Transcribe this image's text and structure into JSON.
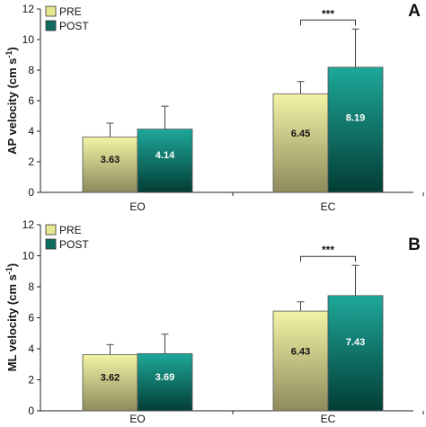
{
  "chart_data": [
    {
      "type": "bar",
      "panel_label": "A",
      "ylabel": "AP velocity (cm s",
      "ylabel_sup": "-1",
      "ylabel_close": ")",
      "yticks": [
        "0",
        "2",
        "4",
        "6",
        "8",
        "10",
        "12"
      ],
      "ylim": [
        0,
        12
      ],
      "categories": [
        "EO",
        "EC"
      ],
      "series": [
        {
          "name": "PRE",
          "values": [
            3.63,
            6.45
          ],
          "errors": [
            0.9,
            0.8
          ],
          "value_labels": [
            "3.63",
            "6.45"
          ]
        },
        {
          "name": "POST",
          "values": [
            4.14,
            8.19
          ],
          "errors": [
            1.5,
            2.5
          ],
          "value_labels": [
            "4.14",
            "8.19"
          ]
        }
      ],
      "significance": {
        "category": "EC",
        "label": "***"
      }
    },
    {
      "type": "bar",
      "panel_label": "B",
      "ylabel": "ML velocity (cm s",
      "ylabel_sup": "-1",
      "ylabel_close": ")",
      "yticks": [
        "0",
        "2",
        "4",
        "6",
        "8",
        "10",
        "12"
      ],
      "ylim": [
        0,
        12
      ],
      "categories": [
        "EO",
        "EC"
      ],
      "series": [
        {
          "name": "PRE",
          "values": [
            3.62,
            6.43
          ],
          "errors": [
            0.65,
            0.6
          ],
          "value_labels": [
            "3.62",
            "6.43"
          ]
        },
        {
          "name": "POST",
          "values": [
            3.69,
            7.43
          ],
          "errors": [
            1.25,
            1.95
          ],
          "value_labels": [
            "3.69",
            "7.43"
          ]
        }
      ],
      "significance": {
        "category": "EC",
        "label": "***"
      }
    }
  ],
  "colors": {
    "pre_top": "#f3f3a6",
    "pre_bottom": "#8f8a5c",
    "post_top": "#1ea89a",
    "post_bottom": "#033d35"
  }
}
